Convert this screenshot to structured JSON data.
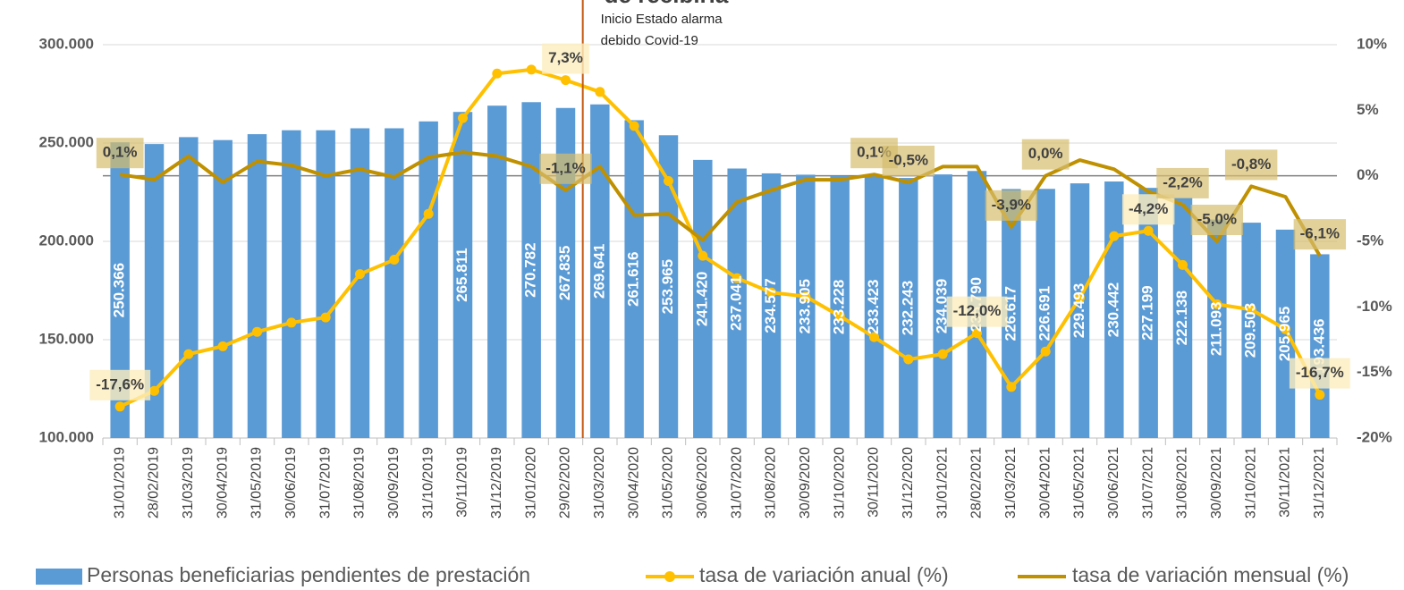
{
  "chart_data": {
    "type": "bar_line",
    "title": "de recibirla",
    "annotation": [
      "Inicio Estado alarma",
      "debido Covid-19"
    ],
    "categories": [
      "31/01/2019",
      "28/02/2019",
      "31/03/2019",
      "30/04/2019",
      "31/05/2019",
      "30/06/2019",
      "31/07/2019",
      "31/08/2019",
      "30/09/2019",
      "31/10/2019",
      "30/11/2019",
      "31/12/2019",
      "31/01/2020",
      "29/02/2020",
      "31/03/2020",
      "30/04/2020",
      "31/05/2020",
      "30/06/2020",
      "31/07/2020",
      "31/08/2020",
      "30/09/2020",
      "31/10/2020",
      "30/11/2020",
      "31/12/2020",
      "31/01/2021",
      "28/02/2021",
      "31/03/2021",
      "30/04/2021",
      "31/05/2021",
      "30/06/2021",
      "31/07/2021",
      "31/08/2021",
      "30/09/2021",
      "31/10/2021",
      "30/11/2021",
      "31/12/2021"
    ],
    "series": [
      {
        "name": "Personas beneficiarias pendientes de prestación",
        "type": "bar",
        "color": "#5b9bd5",
        "values": [
          250366,
          249500,
          253000,
          251500,
          254500,
          256500,
          256500,
          257500,
          257500,
          261000,
          265811,
          269000,
          270782,
          267835,
          269641,
          261616,
          253965,
          241420,
          237041,
          234577,
          233905,
          233228,
          233423,
          232243,
          234039,
          235790,
          226617,
          226691,
          229493,
          230442,
          227199,
          222138,
          211093,
          209503,
          205965,
          193436
        ],
        "value_labels": [
          "250.366",
          null,
          null,
          null,
          null,
          null,
          null,
          null,
          null,
          null,
          "265.811",
          null,
          "270.782",
          "267.835",
          "269.641",
          "261.616",
          "253.965",
          "241.420",
          "237.041",
          "234.577",
          "233.905",
          "233.228",
          "233.423",
          "232.243",
          "234.039",
          "235.790",
          "226.617",
          "226.691",
          "229.493",
          "230.442",
          "227.199",
          "222.138",
          "211.093",
          "209.503",
          "205.965",
          "193.436"
        ]
      },
      {
        "name": "tasa de variación anual (%)",
        "type": "line",
        "axis": "y2",
        "color": "#ffc000",
        "marker": true,
        "values": [
          -17.6,
          -16.4,
          -13.6,
          -13.0,
          -11.9,
          -11.2,
          -10.8,
          -7.5,
          -6.4,
          -2.9,
          4.4,
          7.8,
          8.1,
          7.3,
          6.4,
          3.8,
          -0.4,
          -6.1,
          -7.8,
          -8.9,
          -9.2,
          -10.7,
          -12.3,
          -14.0,
          -13.6,
          -12.0,
          -16.1,
          -13.4,
          -9.3,
          -4.6,
          -4.2,
          -6.8,
          -9.8,
          -10.2,
          -11.7,
          -16.7
        ],
        "value_labels": [
          "-17,6%",
          null,
          null,
          null,
          null,
          null,
          null,
          null,
          null,
          null,
          null,
          null,
          null,
          "7,3%",
          null,
          null,
          null,
          null,
          null,
          null,
          null,
          null,
          null,
          null,
          null,
          "-12,0%",
          null,
          null,
          null,
          null,
          "-4,2%",
          null,
          null,
          null,
          null,
          "-16,7%"
        ]
      },
      {
        "name": "tasa de variación mensual (%)",
        "type": "line",
        "axis": "y2",
        "color": "#bf9000",
        "marker": false,
        "values": [
          0.1,
          -0.3,
          1.5,
          -0.5,
          1.1,
          0.8,
          0.0,
          0.5,
          -0.1,
          1.4,
          1.8,
          1.5,
          0.7,
          -1.1,
          0.7,
          -3.0,
          -2.9,
          -4.9,
          -2.0,
          -1.1,
          -0.3,
          -0.3,
          0.1,
          -0.5,
          0.7,
          0.7,
          -3.9,
          0.0,
          1.2,
          0.5,
          -1.2,
          -2.2,
          -5.0,
          -0.8,
          -1.6,
          -6.1
        ],
        "value_labels": [
          "0,1%",
          null,
          null,
          null,
          null,
          null,
          null,
          null,
          null,
          null,
          null,
          null,
          null,
          "-1,1%",
          null,
          null,
          null,
          null,
          null,
          null,
          null,
          null,
          "0,1%",
          "-0,5%",
          null,
          null,
          "-3,9%",
          "0,0%",
          null,
          null,
          null,
          "-2,2%",
          "-5,0%",
          "-0,8%",
          null,
          "-6,1%"
        ]
      }
    ],
    "ylim": [
      100000,
      300000
    ],
    "yticks": [
      {
        "value": 100000,
        "label": "100.000"
      },
      {
        "value": 150000,
        "label": "150.000"
      },
      {
        "value": 200000,
        "label": "200.000"
      },
      {
        "value": 250000,
        "label": "250.000"
      },
      {
        "value": 300000,
        "label": "300.000"
      }
    ],
    "y2lim": [
      -20,
      10
    ],
    "y2ticks": [
      {
        "value": -20,
        "label": "-20%"
      },
      {
        "value": -15,
        "label": "-15%"
      },
      {
        "value": -10,
        "label": "-10%"
      },
      {
        "value": -5,
        "label": "-5%"
      },
      {
        "value": 0,
        "label": "0%"
      },
      {
        "value": 5,
        "label": "5%"
      },
      {
        "value": 10,
        "label": "10%"
      }
    ],
    "grid": true
  }
}
